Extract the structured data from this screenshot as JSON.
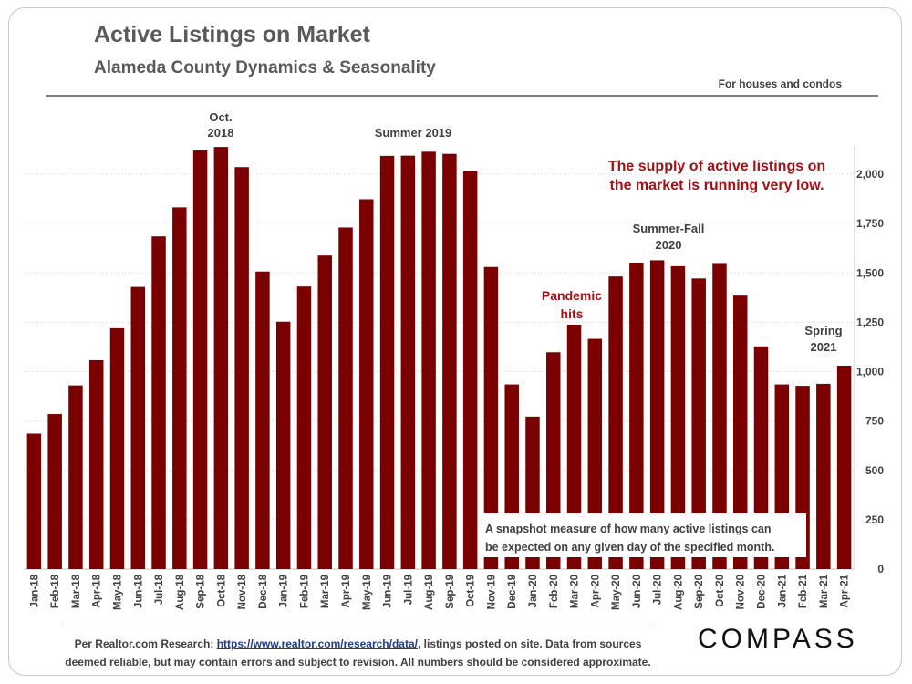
{
  "header": {
    "title": "Active Listings on Market",
    "subtitle": "Alameda County Dynamics & Seasonality",
    "note": "For houses and condos"
  },
  "annotations": {
    "oct2018": [
      "Oct.",
      "2018"
    ],
    "summer2019": "Summer 2019",
    "supply": [
      "The supply of active listings on",
      "the market is running very low."
    ],
    "summerfall2020": [
      "Summer-Fall",
      "2020"
    ],
    "pandemic": [
      "Pandemic",
      "hits"
    ],
    "spring2021": [
      "Spring",
      "2021"
    ],
    "snapshot": [
      "A snapshot measure of how many active listings can",
      "be expected on any given day of the specified month."
    ]
  },
  "footer": {
    "source_prefix": "Per Realtor.com Research: ",
    "source_link": "https://www.realtor.com/research/data/",
    "source_suffix": ", listings posted on site. Data from sources",
    "source_line2": "deemed reliable, but may contain errors and subject to revision. All numbers should be considered approximate.",
    "logo": "COMPASS"
  },
  "colors": {
    "bar": "#7b0000",
    "accent_text": "#a50f15",
    "axis_text": "#404040"
  },
  "chart_data": {
    "type": "bar",
    "title": "Active Listings on Market",
    "xlabel": "",
    "ylabel": "",
    "ylim": [
      0,
      2150
    ],
    "yticks": [
      0,
      250,
      500,
      750,
      1000,
      1250,
      1500,
      1750,
      2000
    ],
    "ytick_labels": [
      "0",
      "250",
      "500",
      "750",
      "1,000",
      "1,250",
      "1,500",
      "1,750",
      "2,000"
    ],
    "y_axis_side": "right",
    "grid": true,
    "categories": [
      "Jan-18",
      "Feb-18",
      "Mar-18",
      "Apr-18",
      "May-18",
      "Jun-18",
      "Jul-18",
      "Aug-18",
      "Sep-18",
      "Oct-18",
      "Nov-18",
      "Dec-18",
      "Jan-19",
      "Feb-19",
      "Mar-19",
      "Apr-19",
      "May-19",
      "Jun-19",
      "Jul-19",
      "Aug-19",
      "Sep-19",
      "Oct-19",
      "Nov-19",
      "Dec-19",
      "Jan-20",
      "Feb-20",
      "Mar-20",
      "Apr-20",
      "May-20",
      "Jun-20",
      "Jul-20",
      "Aug-20",
      "Sep-20",
      "Oct-20",
      "Nov-20",
      "Dec-20",
      "Jan-21",
      "Feb-21",
      "Mar-21",
      "Apr-21"
    ],
    "values": [
      686,
      785,
      930,
      1058,
      1220,
      1429,
      1685,
      1832,
      2120,
      2138,
      2036,
      1507,
      1253,
      1431,
      1588,
      1730,
      1873,
      2093,
      2094,
      2114,
      2103,
      2015,
      1530,
      935,
      772,
      1098,
      1238,
      1166,
      1482,
      1552,
      1564,
      1534,
      1472,
      1550,
      1385,
      1128,
      935,
      928,
      938,
      1030
    ]
  }
}
